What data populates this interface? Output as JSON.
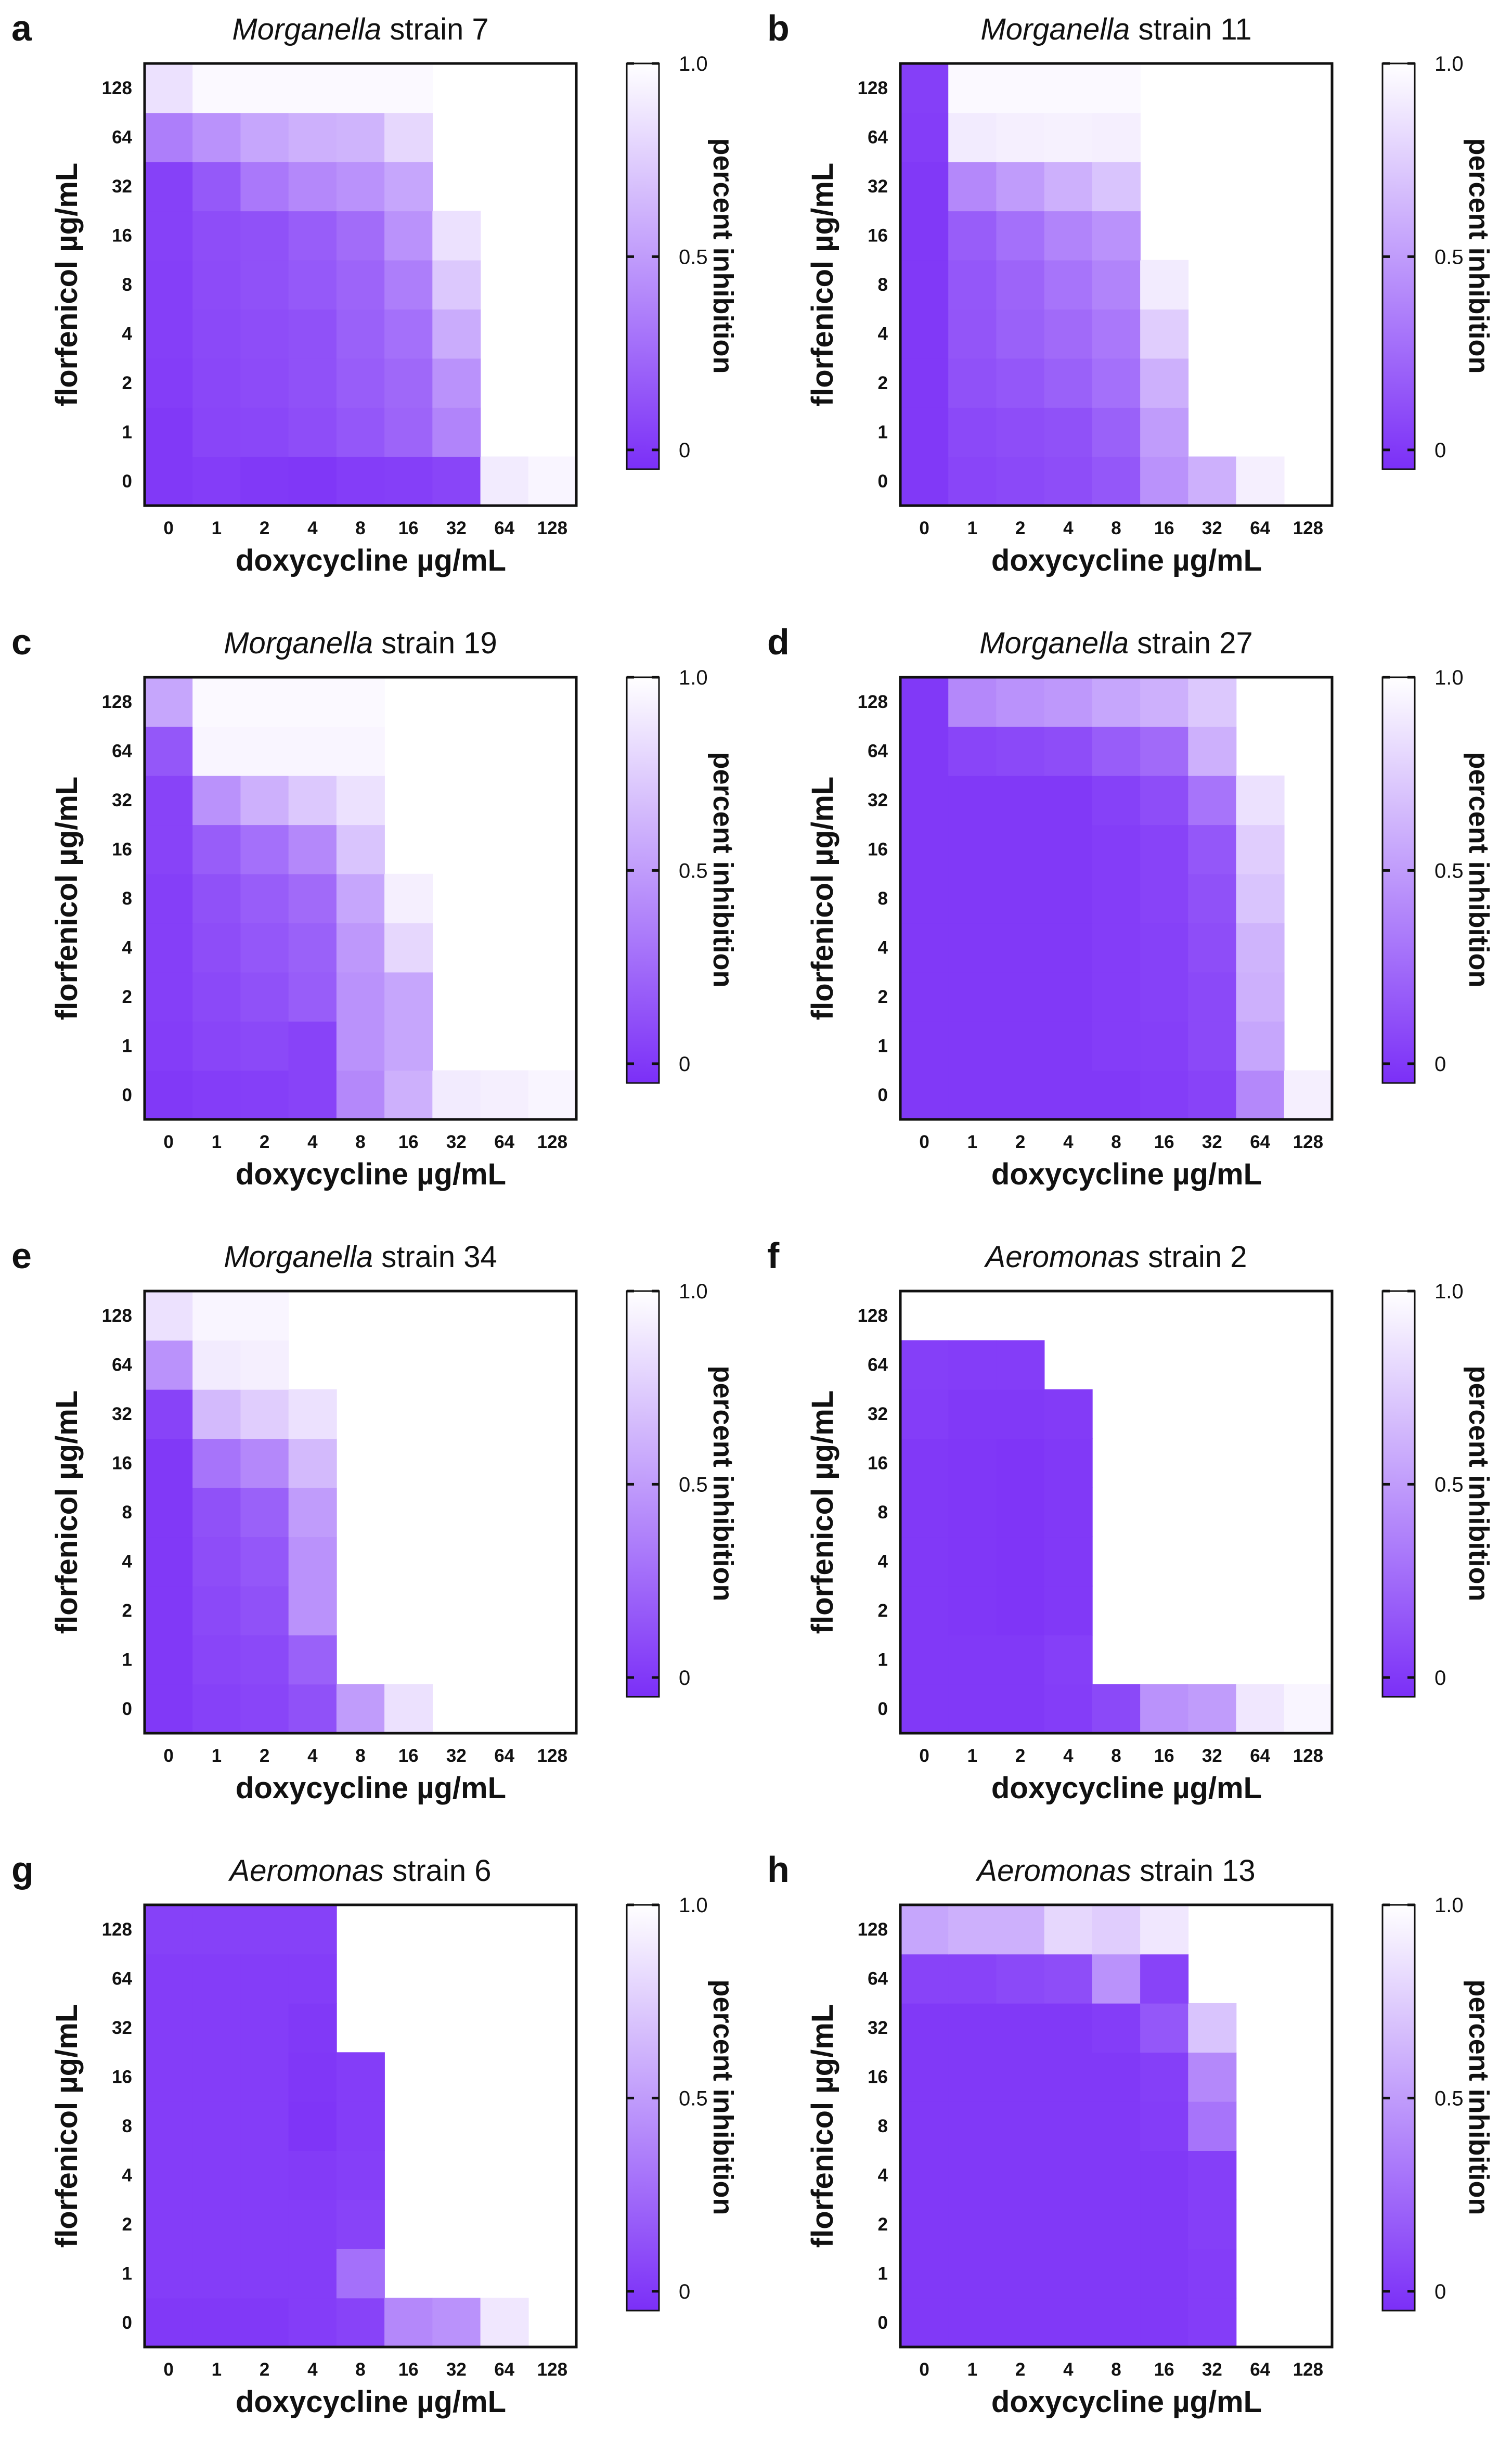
{
  "colors": {
    "low": "#7b2ff7",
    "high": "#ffffff",
    "frame": "#111111"
  },
  "chart_data": [
    {
      "type": "heatmap",
      "panel_label": "a",
      "title_italic": "Morganella",
      "title_rest": " strain 7",
      "xlabel": "doxycycline  µg/mL",
      "ylabel": "florfenicol  µg/mL",
      "x_ticks": [
        "0",
        "1",
        "2",
        "4",
        "8",
        "16",
        "32",
        "64",
        "128"
      ],
      "y_ticks": [
        "0",
        "1",
        "2",
        "4",
        "8",
        "16",
        "32",
        "64",
        "128"
      ],
      "colorbar": {
        "label": "percent inhibition",
        "ticks": [
          "0",
          "0.5",
          "1.0"
        ],
        "range": [
          -0.05,
          1.0
        ]
      },
      "rows_bottom_to_top": [
        [
          0.0,
          0.02,
          0.0,
          -0.01,
          0.02,
          0.03,
          0.06,
          0.9,
          0.95
        ],
        [
          0.0,
          0.06,
          0.07,
          0.1,
          0.15,
          0.22,
          0.38,
          null,
          null
        ],
        [
          0.02,
          0.07,
          0.09,
          0.12,
          0.18,
          0.24,
          0.45,
          null,
          null
        ],
        [
          0.03,
          0.08,
          0.1,
          0.12,
          0.2,
          0.28,
          0.58,
          null,
          null
        ],
        [
          0.03,
          0.09,
          0.12,
          0.16,
          0.22,
          0.35,
          0.72,
          null,
          null
        ],
        [
          0.04,
          0.1,
          0.12,
          0.18,
          0.26,
          0.45,
          0.85,
          null,
          null
        ],
        [
          0.04,
          0.16,
          0.32,
          0.4,
          0.45,
          0.55,
          null,
          null,
          null
        ],
        [
          0.35,
          0.45,
          0.55,
          0.6,
          0.62,
          0.8,
          null,
          null,
          null
        ],
        [
          0.85,
          0.97,
          0.97,
          0.97,
          0.97,
          0.97,
          null,
          null,
          null
        ]
      ]
    },
    {
      "type": "heatmap",
      "panel_label": "b",
      "title_italic": "Morganella",
      "title_rest": " strain 11",
      "xlabel": "doxycycline  µg/mL",
      "ylabel": "florfenicol  µg/mL",
      "x_ticks": [
        "0",
        "1",
        "2",
        "4",
        "8",
        "16",
        "32",
        "64",
        "128"
      ],
      "y_ticks": [
        "0",
        "1",
        "2",
        "4",
        "8",
        "16",
        "32",
        "64",
        "128"
      ],
      "colorbar": {
        "label": "percent inhibition",
        "ticks": [
          "0",
          "0.5",
          "1.0"
        ],
        "range": [
          -0.05,
          1.0
        ]
      },
      "rows_bottom_to_top": [
        [
          0.0,
          0.06,
          0.08,
          0.1,
          0.15,
          0.45,
          0.6,
          0.92,
          null
        ],
        [
          0.0,
          0.08,
          0.1,
          0.12,
          0.2,
          0.5,
          null,
          null,
          null
        ],
        [
          0.0,
          0.12,
          0.15,
          0.2,
          0.28,
          0.6,
          null,
          null,
          null
        ],
        [
          0.0,
          0.14,
          0.2,
          0.25,
          0.32,
          0.75,
          null,
          null,
          null
        ],
        [
          0.0,
          0.15,
          0.22,
          0.3,
          0.38,
          0.9,
          null,
          null,
          null
        ],
        [
          0.0,
          0.18,
          0.28,
          0.38,
          0.45,
          null,
          null,
          null,
          null
        ],
        [
          0.0,
          0.4,
          0.5,
          0.6,
          0.7,
          null,
          null,
          null,
          null
        ],
        [
          0.02,
          0.9,
          0.92,
          0.93,
          0.92,
          null,
          null,
          null,
          null
        ],
        [
          0.03,
          0.97,
          0.97,
          0.97,
          0.97,
          null,
          null,
          null,
          null
        ]
      ]
    },
    {
      "type": "heatmap",
      "panel_label": "c",
      "title_italic": "Morganella",
      "title_rest": " strain 19",
      "xlabel": "doxycycline  µg/mL",
      "ylabel": "florfenicol  µg/mL",
      "x_ticks": [
        "0",
        "1",
        "2",
        "4",
        "8",
        "16",
        "32",
        "64",
        "128"
      ],
      "y_ticks": [
        "0",
        "1",
        "2",
        "4",
        "8",
        "16",
        "32",
        "64",
        "128"
      ],
      "colorbar": {
        "label": "percent inhibition",
        "ticks": [
          "0",
          "0.5",
          "1.0"
        ],
        "range": [
          -0.05,
          1.0
        ]
      },
      "rows_bottom_to_top": [
        [
          0.0,
          0.02,
          0.03,
          0.05,
          0.4,
          0.6,
          0.9,
          0.92,
          0.95
        ],
        [
          0.02,
          0.06,
          0.08,
          0.05,
          0.45,
          0.55,
          null,
          null,
          null
        ],
        [
          0.03,
          0.08,
          0.12,
          0.18,
          0.45,
          0.55,
          null,
          null,
          null
        ],
        [
          0.03,
          0.1,
          0.15,
          0.2,
          0.48,
          0.8,
          null,
          null,
          null
        ],
        [
          0.03,
          0.12,
          0.18,
          0.25,
          0.55,
          0.92,
          null,
          null,
          null
        ],
        [
          0.05,
          0.18,
          0.28,
          0.4,
          0.7,
          null,
          null,
          null,
          null
        ],
        [
          0.05,
          0.45,
          0.6,
          0.72,
          0.85,
          null,
          null,
          null,
          null
        ],
        [
          0.15,
          0.95,
          0.95,
          0.95,
          0.95,
          null,
          null,
          null,
          null
        ],
        [
          0.55,
          0.97,
          0.97,
          0.97,
          0.97,
          null,
          null,
          null,
          null
        ]
      ]
    },
    {
      "type": "heatmap",
      "panel_label": "d",
      "title_italic": "Morganella",
      "title_rest": " strain 27",
      "xlabel": "doxycycline  µg/mL",
      "ylabel": "florfenicol  µg/mL",
      "x_ticks": [
        "0",
        "1",
        "2",
        "4",
        "8",
        "16",
        "32",
        "64",
        "128"
      ],
      "y_ticks": [
        "0",
        "1",
        "2",
        "4",
        "8",
        "16",
        "32",
        "64",
        "128"
      ],
      "colorbar": {
        "label": "percent inhibition",
        "ticks": [
          "0",
          "0.5",
          "1.0"
        ],
        "range": [
          -0.05,
          1.0
        ]
      },
      "rows_bottom_to_top": [
        [
          0.0,
          0.0,
          0.0,
          0.0,
          0.0,
          0.02,
          0.05,
          0.4,
          0.92
        ],
        [
          0.0,
          0.0,
          0.0,
          0.0,
          0.02,
          0.03,
          0.08,
          0.55,
          null
        ],
        [
          0.0,
          0.0,
          0.0,
          0.0,
          0.02,
          0.04,
          0.08,
          0.6,
          null
        ],
        [
          0.0,
          0.0,
          0.0,
          0.0,
          0.02,
          0.04,
          0.1,
          0.62,
          null
        ],
        [
          0.0,
          0.0,
          0.0,
          0.0,
          0.02,
          0.05,
          0.12,
          0.7,
          null
        ],
        [
          0.0,
          0.0,
          0.0,
          0.0,
          0.02,
          0.05,
          0.15,
          0.75,
          null
        ],
        [
          0.0,
          0.0,
          0.0,
          0.0,
          0.04,
          0.1,
          0.3,
          0.85,
          null
        ],
        [
          0.0,
          0.06,
          0.08,
          0.1,
          0.18,
          0.25,
          0.6,
          null,
          null
        ],
        [
          0.0,
          0.4,
          0.45,
          0.48,
          0.55,
          0.6,
          0.72,
          null,
          null
        ]
      ]
    },
    {
      "type": "heatmap",
      "panel_label": "e",
      "title_italic": "Morganella",
      "title_rest": " strain 34",
      "xlabel": "doxycycline  µg/mL",
      "ylabel": "florfenicol  µg/mL",
      "x_ticks": [
        "0",
        "1",
        "2",
        "4",
        "8",
        "16",
        "32",
        "64",
        "128"
      ],
      "y_ticks": [
        "0",
        "1",
        "2",
        "4",
        "8",
        "16",
        "32",
        "64",
        "128"
      ],
      "colorbar": {
        "label": "percent inhibition",
        "ticks": [
          "0",
          "0.5",
          "1.0"
        ],
        "range": [
          -0.05,
          1.0
        ]
      },
      "rows_bottom_to_top": [
        [
          0.0,
          0.04,
          0.06,
          0.12,
          0.5,
          0.85,
          null,
          null,
          null
        ],
        [
          0.0,
          0.06,
          0.08,
          0.2,
          null,
          null,
          null,
          null,
          null
        ],
        [
          0.0,
          0.08,
          0.12,
          0.45,
          null,
          null,
          null,
          null,
          null
        ],
        [
          0.0,
          0.1,
          0.15,
          0.45,
          null,
          null,
          null,
          null,
          null
        ],
        [
          0.0,
          0.12,
          0.2,
          0.5,
          null,
          null,
          null,
          null,
          null
        ],
        [
          0.0,
          0.3,
          0.4,
          0.65,
          null,
          null,
          null,
          null,
          null
        ],
        [
          0.05,
          0.65,
          0.75,
          0.85,
          null,
          null,
          null,
          null,
          null
        ],
        [
          0.45,
          0.9,
          0.92,
          null,
          null,
          null,
          null,
          null,
          null
        ],
        [
          0.85,
          0.95,
          0.95,
          null,
          null,
          null,
          null,
          null,
          null
        ]
      ]
    },
    {
      "type": "heatmap",
      "panel_label": "f",
      "title_italic": "Aeromonas",
      "title_rest": " strain 2",
      "xlabel": "doxycycline  µg/mL",
      "ylabel": "florfenicol  µg/mL",
      "x_ticks": [
        "0",
        "1",
        "2",
        "4",
        "8",
        "16",
        "32",
        "64",
        "128"
      ],
      "y_ticks": [
        "0",
        "1",
        "2",
        "4",
        "8",
        "16",
        "32",
        "64",
        "128"
      ],
      "colorbar": {
        "label": "percent inhibition",
        "ticks": [
          "0",
          "0.5",
          "1.0"
        ],
        "range": [
          -0.05,
          1.0
        ]
      },
      "rows_bottom_to_top": [
        [
          0.0,
          0.0,
          0.0,
          0.02,
          0.08,
          0.45,
          0.5,
          0.88,
          0.95
        ],
        [
          0.0,
          0.0,
          0.0,
          0.03,
          null,
          null,
          null,
          null,
          null
        ],
        [
          0.0,
          -0.01,
          -0.02,
          0.0,
          null,
          null,
          null,
          null,
          null
        ],
        [
          0.0,
          -0.01,
          -0.02,
          0.0,
          null,
          null,
          null,
          null,
          null
        ],
        [
          0.0,
          -0.01,
          -0.02,
          0.0,
          null,
          null,
          null,
          null,
          null
        ],
        [
          0.0,
          -0.01,
          -0.02,
          0.0,
          null,
          null,
          null,
          null,
          null
        ],
        [
          0.02,
          0.0,
          0.0,
          0.01,
          null,
          null,
          null,
          null,
          null
        ],
        [
          0.03,
          0.02,
          0.02,
          null,
          null,
          null,
          null,
          null,
          null
        ],
        [
          null,
          null,
          null,
          null,
          null,
          null,
          null,
          null,
          null
        ]
      ]
    },
    {
      "type": "heatmap",
      "panel_label": "g",
      "title_italic": "Aeromonas",
      "title_rest": " strain 6",
      "xlabel": "doxycycline  µg/mL",
      "ylabel": "florfenicol  µg/mL",
      "x_ticks": [
        "0",
        "1",
        "2",
        "4",
        "8",
        "16",
        "32",
        "64",
        "128"
      ],
      "y_ticks": [
        "0",
        "1",
        "2",
        "4",
        "8",
        "16",
        "32",
        "64",
        "128"
      ],
      "colorbar": {
        "label": "percent inhibition",
        "ticks": [
          "0",
          "0.5",
          "1.0"
        ],
        "range": [
          -0.05,
          1.0
        ]
      },
      "rows_bottom_to_top": [
        [
          0.0,
          0.0,
          0.0,
          0.02,
          0.05,
          0.4,
          0.45,
          0.88,
          null
        ],
        [
          0.02,
          0.02,
          0.02,
          0.02,
          0.28,
          null,
          null,
          null,
          null
        ],
        [
          0.02,
          0.02,
          0.02,
          0.02,
          0.05,
          null,
          null,
          null,
          null
        ],
        [
          0.02,
          0.02,
          0.02,
          0.01,
          0.03,
          null,
          null,
          null,
          null
        ],
        [
          0.02,
          0.02,
          0.02,
          -0.02,
          0.02,
          null,
          null,
          null,
          null
        ],
        [
          0.02,
          0.02,
          0.02,
          -0.01,
          0.02,
          null,
          null,
          null,
          null
        ],
        [
          0.02,
          0.02,
          0.02,
          0.0,
          null,
          null,
          null,
          null,
          null
        ],
        [
          0.02,
          0.02,
          0.02,
          0.02,
          null,
          null,
          null,
          null,
          null
        ],
        [
          0.04,
          0.04,
          0.04,
          0.04,
          null,
          null,
          null,
          null,
          null
        ]
      ]
    },
    {
      "type": "heatmap",
      "panel_label": "h",
      "title_italic": "Aeromonas",
      "title_rest": " strain 13",
      "xlabel": "doxycycline  µg/mL",
      "ylabel": "florfenicol  µg/mL",
      "x_ticks": [
        "0",
        "1",
        "2",
        "4",
        "8",
        "16",
        "32",
        "64",
        "128"
      ],
      "y_ticks": [
        "0",
        "1",
        "2",
        "4",
        "8",
        "16",
        "32",
        "64",
        "128"
      ],
      "colorbar": {
        "label": "percent inhibition",
        "ticks": [
          "0",
          "0.5",
          "1.0"
        ],
        "range": [
          -0.05,
          1.0
        ]
      },
      "rows_bottom_to_top": [
        [
          0.0,
          0.0,
          0.0,
          0.0,
          0.0,
          0.0,
          0.02,
          null,
          null
        ],
        [
          0.0,
          0.0,
          0.0,
          0.0,
          0.0,
          0.0,
          0.02,
          null,
          null
        ],
        [
          0.0,
          0.0,
          0.0,
          0.0,
          0.0,
          0.0,
          0.03,
          null,
          null
        ],
        [
          0.0,
          0.0,
          0.0,
          0.0,
          0.0,
          0.0,
          0.03,
          null,
          null
        ],
        [
          0.0,
          0.0,
          0.0,
          0.0,
          0.0,
          0.02,
          0.3,
          null,
          null
        ],
        [
          0.0,
          0.0,
          0.0,
          0.0,
          0.0,
          0.03,
          0.4,
          null,
          null
        ],
        [
          0.0,
          0.0,
          0.0,
          0.0,
          0.02,
          0.15,
          0.7,
          null,
          null
        ],
        [
          0.05,
          0.05,
          0.08,
          0.1,
          0.45,
          0.05,
          null,
          null,
          null
        ],
        [
          0.55,
          0.6,
          0.6,
          0.8,
          0.75,
          0.88,
          null,
          null,
          null
        ]
      ]
    }
  ]
}
